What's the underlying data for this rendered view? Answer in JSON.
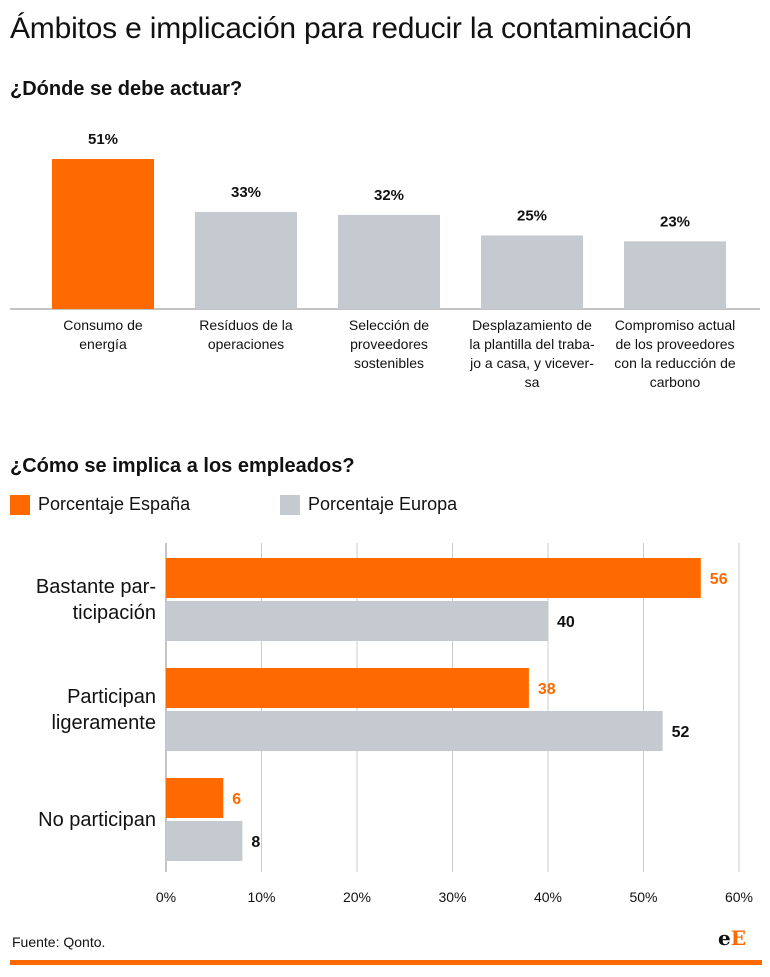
{
  "title": "Ámbitos e implicación para reducir la contaminación",
  "colors": {
    "spain": "#ff6a00",
    "europe": "#c5c9d0",
    "grid": "#cccccc",
    "axis": "#888888"
  },
  "chart_data": [
    {
      "type": "bar",
      "title": "¿Dónde se debe actuar?",
      "categories": [
        "Consumo de energía",
        "Resíduos de la operaciones",
        "Selección de proveedores sostenibles",
        "Desplazamiento de la plantilla del trabajo a casa, y viceversa",
        "Compromiso actual de los proveedores con la reducción de carbono"
      ],
      "category_lines": [
        [
          "Consumo de",
          "energía"
        ],
        [
          "Resíduos de la",
          "operaciones"
        ],
        [
          "Selección de",
          "proveedores",
          "sostenibles"
        ],
        [
          "Desplazamiento de",
          "la plantilla del traba-",
          "jo a casa, y vicever-",
          "sa"
        ],
        [
          "Compromiso actual",
          "de los proveedores",
          "con la reducción de",
          "carbono"
        ]
      ],
      "values": [
        51,
        33,
        32,
        25,
        23
      ],
      "value_labels": [
        "51%",
        "33%",
        "32%",
        "25%",
        "23%"
      ],
      "highlight_index": 0
    },
    {
      "type": "bar",
      "orientation": "horizontal",
      "title": "¿Cómo se implica a los empleados?",
      "categories": [
        "Bastante participación",
        "Participan ligeramente",
        "No participan"
      ],
      "category_lines": [
        [
          "Bastante par-",
          "ticipación"
        ],
        [
          "Participan",
          "ligeramente"
        ],
        [
          "No participan"
        ]
      ],
      "series": [
        {
          "name": "Porcentaje España",
          "values": [
            56,
            38,
            6
          ]
        },
        {
          "name": "Porcentaje Europa",
          "values": [
            40,
            52,
            8
          ]
        }
      ],
      "xlim": [
        0,
        60
      ],
      "xticks": [
        "0%",
        "10%",
        "20%",
        "30%",
        "40%",
        "50%",
        "60%"
      ],
      "legend": "top-left",
      "grid": true
    }
  ],
  "source": "Fuente: Qonto.",
  "logo": {
    "small": "e",
    "big": "E"
  }
}
